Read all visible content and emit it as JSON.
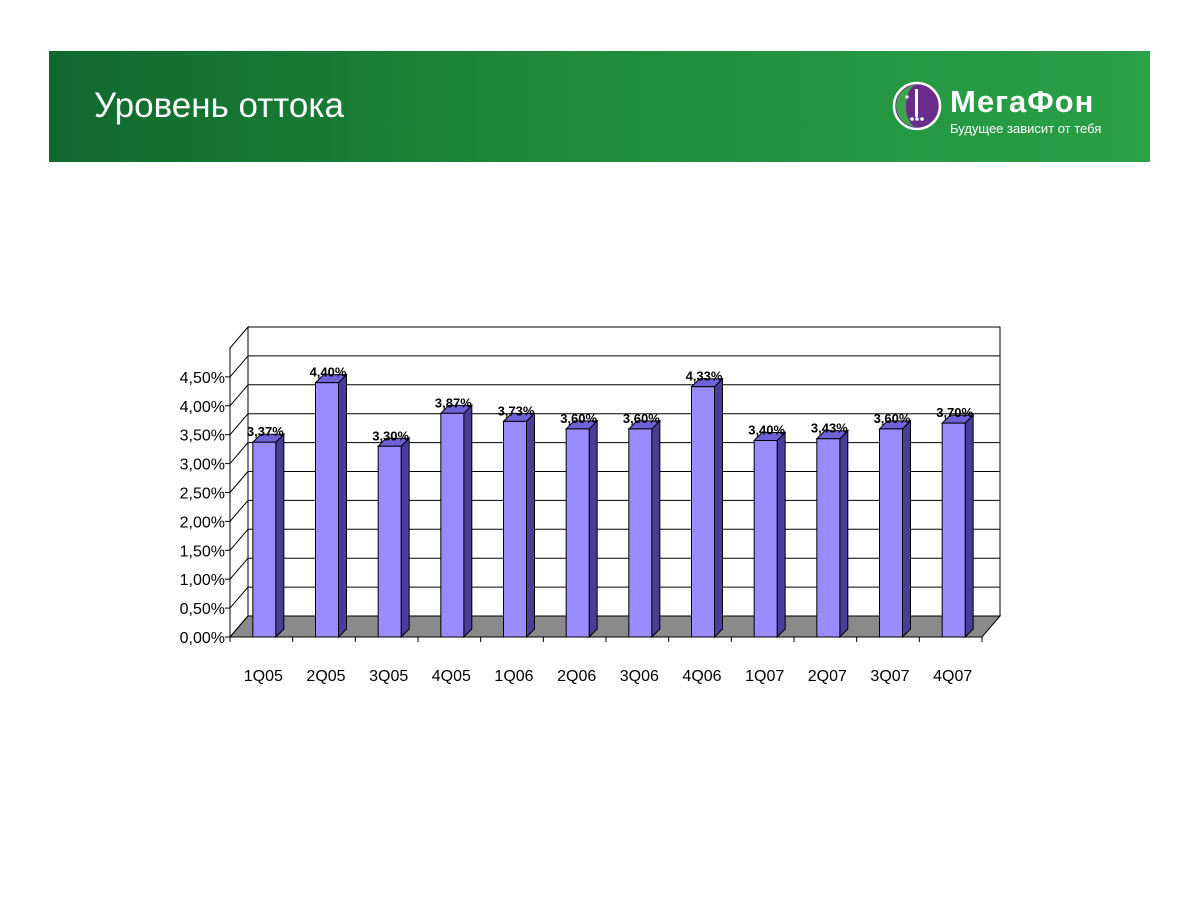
{
  "header": {
    "title": "Уровень оттока",
    "logo_name": "МегаФон",
    "logo_slogan": "Будущее зависит от тебя",
    "brand_color": "#1f8a3a",
    "logo_icon": "megafon-logo-icon"
  },
  "chart_data": {
    "type": "bar",
    "categories": [
      "1Q05",
      "2Q05",
      "3Q05",
      "4Q05",
      "1Q06",
      "2Q06",
      "3Q06",
      "4Q06",
      "1Q07",
      "2Q07",
      "3Q07",
      "4Q07"
    ],
    "values": [
      3.37,
      4.4,
      3.3,
      3.87,
      3.73,
      3.6,
      3.6,
      4.33,
      3.4,
      3.43,
      3.6,
      3.7
    ],
    "data_labels": [
      "3,37%",
      "4,40%",
      "3,30%",
      "3,87%",
      "3,73%",
      "3,60%",
      "3,60%",
      "4,33%",
      "3,40%",
      "3,43%",
      "3,60%",
      "3,70%"
    ],
    "y_ticks": [
      0,
      0.5,
      1.0,
      1.5,
      2.0,
      2.5,
      3.0,
      3.5,
      4.0,
      4.5
    ],
    "y_tick_labels": [
      "0,00%",
      "0,50%",
      "1,00%",
      "1,50%",
      "2,00%",
      "2,50%",
      "3,00%",
      "3,50%",
      "4,00%",
      "4,50%"
    ],
    "ylim": [
      0,
      4.5
    ],
    "grid": true,
    "style": "3d",
    "bar_color": "#9a8cff",
    "bar_side_color": "#4a3d99",
    "floor_color": "#8a8a8a"
  }
}
